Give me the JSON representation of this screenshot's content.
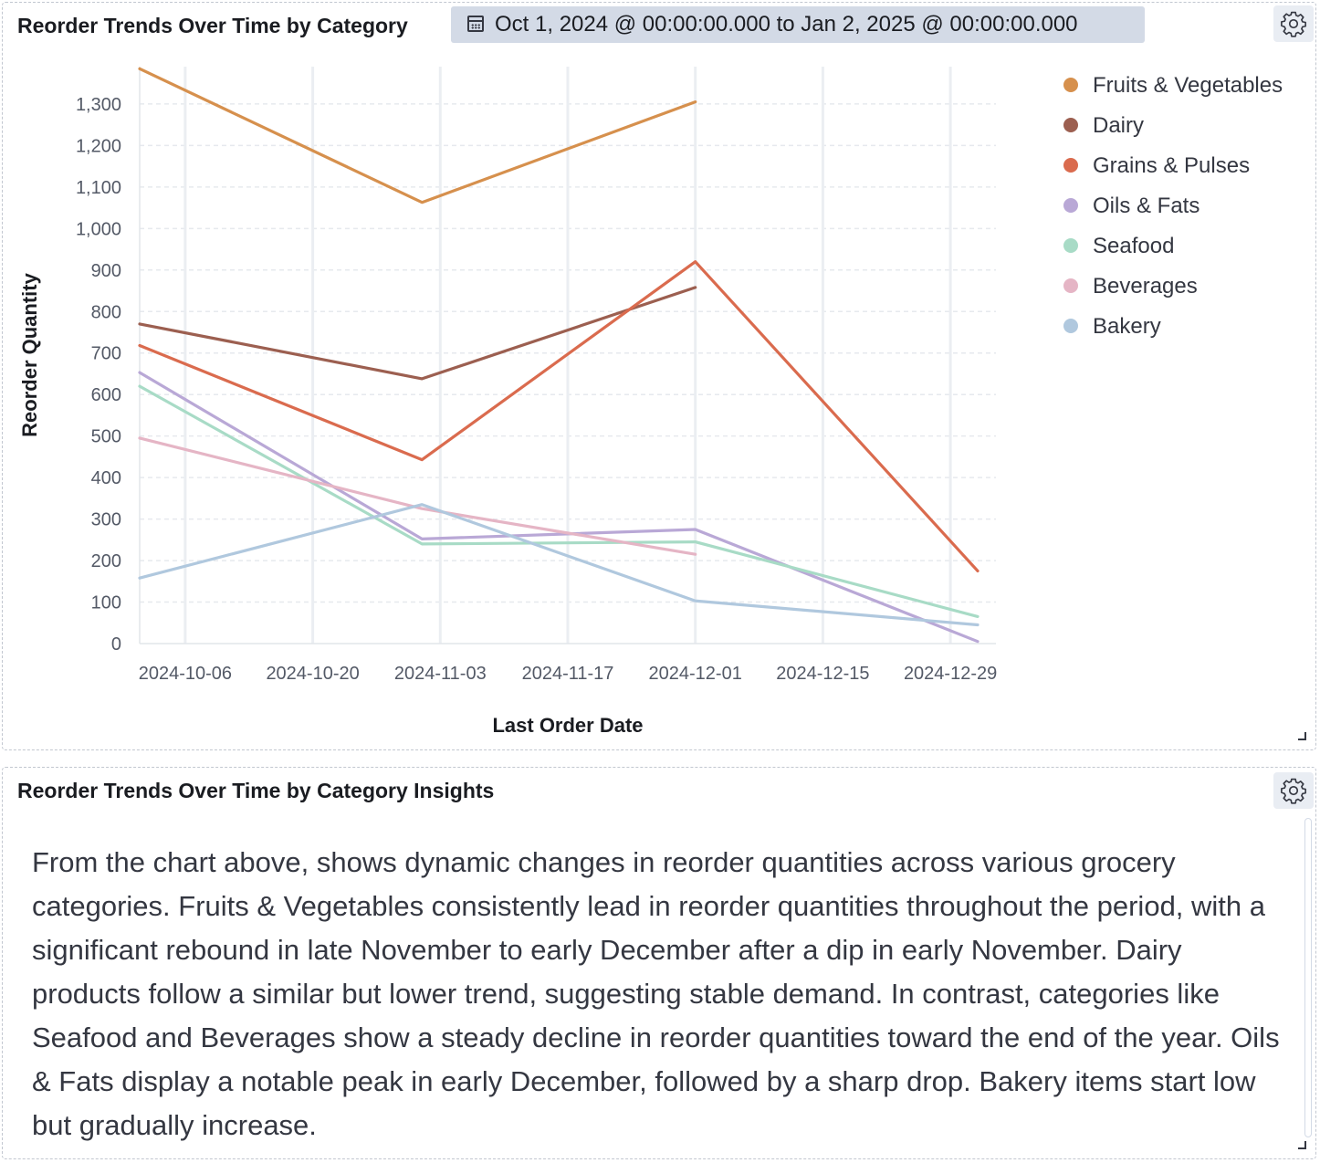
{
  "chart_panel": {
    "title": "Reorder Trends Over Time by Category",
    "time_range": "Oct 1, 2024 @ 00:00:00.000 to Jan 2, 2025 @ 00:00:00.000"
  },
  "insights_panel": {
    "title": "Reorder Trends Over Time by Category Insights",
    "text": "From the chart above, shows dynamic changes in reorder quantities across various grocery categories. Fruits & Vegetables consistently lead in reorder quantities throughout the period, with a significant rebound in late November to early December after a dip in early November. Dairy products follow a similar but lower trend, suggesting stable demand. In contrast, categories like Seafood and Beverages show a steady decline in reorder quantities toward the end of the year. Oils & Fats display a notable peak in early December, followed by a sharp drop. Bakery items start low but gradually increase."
  },
  "icons": {
    "time_range": "calendar-icon",
    "settings": "gear-icon",
    "resize": "resize-handle-icon"
  },
  "chart_data": {
    "type": "line",
    "xlabel": "Last Order Date",
    "ylabel": "Reorder Quantity",
    "x_ticks": [
      "2024-10-06",
      "2024-10-20",
      "2024-11-03",
      "2024-11-17",
      "2024-12-01",
      "2024-12-15",
      "2024-12-29"
    ],
    "xlim": [
      "2024-10-01",
      "2025-01-03"
    ],
    "y_ticks": [
      0,
      100,
      200,
      300,
      400,
      500,
      600,
      700,
      800,
      900,
      1000,
      1100,
      1200,
      1300
    ],
    "y_tick_labels": [
      "0",
      "100",
      "200",
      "300",
      "400",
      "500",
      "600",
      "700",
      "800",
      "900",
      "1,000",
      "1,100",
      "1,200",
      "1,300"
    ],
    "ylim": [
      0,
      1390
    ],
    "legend_position": "right",
    "grid": true,
    "series": [
      {
        "name": "Fruits & Vegetables",
        "color": "#d6904d",
        "points": [
          [
            "2024-10-01",
            1385
          ],
          [
            "2024-11-01",
            1063
          ],
          [
            "2024-12-01",
            1305
          ]
        ]
      },
      {
        "name": "Dairy",
        "color": "#9c5f50",
        "points": [
          [
            "2024-10-01",
            770
          ],
          [
            "2024-11-01",
            638
          ],
          [
            "2024-12-01",
            858
          ]
        ]
      },
      {
        "name": "Grains & Pulses",
        "color": "#da6b4e",
        "points": [
          [
            "2024-10-01",
            718
          ],
          [
            "2024-11-01",
            443
          ],
          [
            "2024-12-01",
            920
          ],
          [
            "2025-01-01",
            175
          ]
        ]
      },
      {
        "name": "Oils & Fats",
        "color": "#b9a8d6",
        "points": [
          [
            "2024-10-01",
            653
          ],
          [
            "2024-11-01",
            252
          ],
          [
            "2024-12-01",
            275
          ],
          [
            "2025-01-01",
            5
          ]
        ]
      },
      {
        "name": "Seafood",
        "color": "#a8dbc6",
        "points": [
          [
            "2024-10-01",
            620
          ],
          [
            "2024-11-01",
            240
          ],
          [
            "2024-12-01",
            245
          ],
          [
            "2025-01-01",
            65
          ]
        ]
      },
      {
        "name": "Beverages",
        "color": "#e5b5c5",
        "points": [
          [
            "2024-10-01",
            495
          ],
          [
            "2024-11-01",
            325
          ],
          [
            "2024-12-01",
            215
          ]
        ]
      },
      {
        "name": "Bakery",
        "color": "#b0c8de",
        "points": [
          [
            "2024-10-01",
            158
          ],
          [
            "2024-11-01",
            335
          ],
          [
            "2024-12-01",
            103
          ],
          [
            "2025-01-01",
            45
          ]
        ]
      }
    ]
  }
}
